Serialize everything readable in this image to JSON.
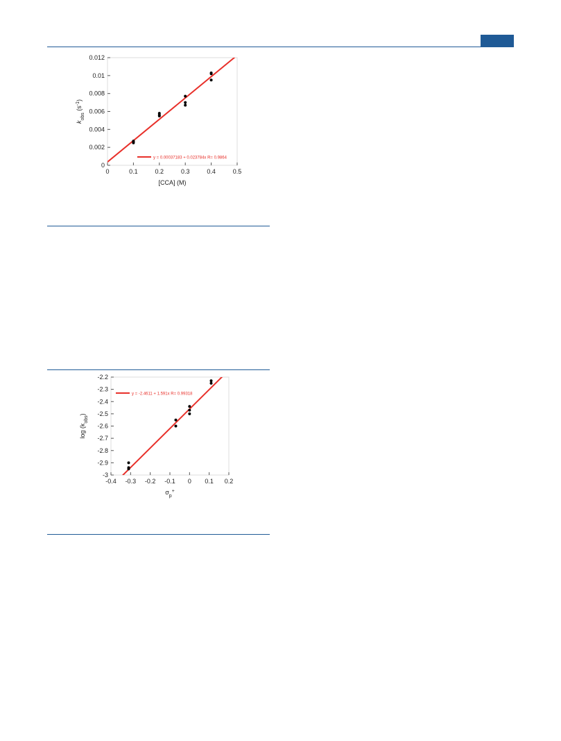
{
  "chart_data": [
    {
      "type": "scatter",
      "x": [
        0.1,
        0.1,
        0.1,
        0.2,
        0.2,
        0.2,
        0.3,
        0.3,
        0.3,
        0.4,
        0.4,
        0.4
      ],
      "values": [
        0.0026,
        0.0025,
        0.0027,
        0.0058,
        0.0056,
        0.0055,
        0.0077,
        0.007,
        0.0067,
        0.0103,
        0.0102,
        0.0095
      ],
      "color": "#000000",
      "xlim": [
        0,
        0.5
      ],
      "xticks": [
        0,
        0.1,
        0.2,
        0.3,
        0.4,
        0.5
      ],
      "ylim": [
        0,
        0.012
      ],
      "yticks": [
        0,
        0.002,
        0.004,
        0.006,
        0.008,
        0.01,
        0.012
      ],
      "x_label": [
        {
          "text": "[CCA] (M)",
          "pos": "base"
        }
      ],
      "y_label": [
        {
          "text": "k",
          "pos": "base"
        },
        {
          "text": "obs",
          "pos": "sub"
        },
        {
          "text": " (s",
          "pos": "base"
        },
        {
          "text": "-1",
          "pos": "sup"
        },
        {
          "text": ")",
          "pos": "base"
        }
      ],
      "fit": {
        "intercept": 0.00037183,
        "slope": 0.023784,
        "color": "#e8302a",
        "label": "y = 0.00037183 + 0.023784x   R= 0.9864",
        "legend": "lower right"
      }
    },
    {
      "type": "scatter",
      "x": [
        -0.31,
        -0.31,
        -0.31,
        -0.07,
        -0.07,
        0,
        0,
        0,
        0.11,
        0.11
      ],
      "values": [
        -2.9,
        -2.94,
        -2.95,
        -2.55,
        -2.6,
        -2.44,
        -2.47,
        -2.5,
        -2.23,
        -2.25
      ],
      "color": "#000000",
      "xlim": [
        -0.4,
        0.2
      ],
      "xticks": [
        -0.4,
        -0.3,
        -0.2,
        -0.1,
        0,
        0.1,
        0.2
      ],
      "ylim": [
        -3,
        -2.2
      ],
      "yticks": [
        -3,
        -2.9,
        -2.8,
        -2.7,
        -2.6,
        -2.5,
        -2.4,
        -2.3,
        -2.2
      ],
      "x_label": [
        {
          "text": "σ",
          "pos": "base"
        },
        {
          "text": "p",
          "pos": "sub"
        },
        {
          "text": "+",
          "pos": "sup"
        }
      ],
      "y_label": [
        {
          "text": "log (k",
          "pos": "base"
        },
        {
          "text": "obs",
          "pos": "sub"
        },
        {
          "text": ")",
          "pos": "base"
        }
      ],
      "fit": {
        "intercept": -2.4611,
        "slope": 1.591,
        "color": "#e8302a",
        "label": "y = -2.4611 + 1.591x   R= 0.99318",
        "legend": "upper left"
      }
    }
  ]
}
